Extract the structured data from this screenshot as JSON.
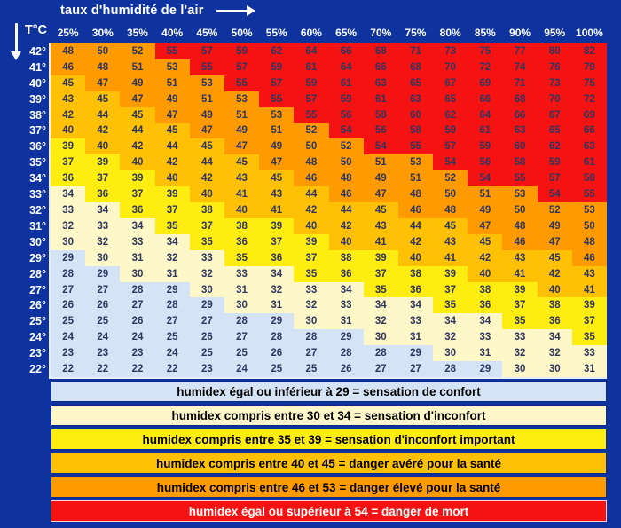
{
  "header": {
    "title": "taux d'humidité de l'air",
    "temp_axis_label": "T°C"
  },
  "colors": {
    "background": "#0E339E",
    "cell_text": "#2E3660",
    "header_text": "#FFFFFF",
    "table_edge": "#E9EEF8"
  },
  "chart_data": {
    "type": "heatmap",
    "title": "taux d'humidité de l'air",
    "xlabel": "taux d'humidité de l'air",
    "ylabel": "T°C",
    "columns": [
      "25%",
      "30%",
      "35%",
      "40%",
      "45%",
      "50%",
      "55%",
      "60%",
      "65%",
      "70%",
      "75%",
      "80%",
      "85%",
      "90%",
      "95%",
      "100%"
    ],
    "rows": [
      {
        "temp": "42°",
        "values": [
          48,
          50,
          52,
          55,
          57,
          59,
          62,
          64,
          66,
          68,
          71,
          73,
          75,
          77,
          80,
          82
        ]
      },
      {
        "temp": "41°",
        "values": [
          46,
          48,
          51,
          53,
          55,
          57,
          59,
          61,
          64,
          66,
          68,
          70,
          72,
          74,
          76,
          79
        ]
      },
      {
        "temp": "40°",
        "values": [
          45,
          47,
          49,
          51,
          53,
          55,
          57,
          59,
          61,
          63,
          65,
          67,
          69,
          71,
          73,
          75
        ]
      },
      {
        "temp": "39°",
        "values": [
          43,
          45,
          47,
          49,
          51,
          53,
          55,
          57,
          59,
          61,
          63,
          65,
          66,
          68,
          70,
          72
        ]
      },
      {
        "temp": "38°",
        "values": [
          42,
          44,
          45,
          47,
          49,
          51,
          53,
          55,
          56,
          58,
          60,
          62,
          64,
          66,
          67,
          69
        ]
      },
      {
        "temp": "37°",
        "values": [
          40,
          42,
          44,
          45,
          47,
          49,
          51,
          52,
          54,
          56,
          58,
          59,
          61,
          63,
          65,
          66
        ]
      },
      {
        "temp": "36°",
        "values": [
          39,
          40,
          42,
          44,
          45,
          47,
          49,
          50,
          52,
          54,
          55,
          57,
          59,
          60,
          62,
          63
        ]
      },
      {
        "temp": "35°",
        "values": [
          37,
          39,
          40,
          42,
          44,
          45,
          47,
          48,
          50,
          51,
          53,
          54,
          56,
          58,
          59,
          61
        ]
      },
      {
        "temp": "34°",
        "values": [
          36,
          37,
          39,
          40,
          42,
          43,
          45,
          46,
          48,
          49,
          51,
          52,
          54,
          55,
          57,
          58
        ]
      },
      {
        "temp": "33°",
        "values": [
          34,
          36,
          37,
          39,
          40,
          41,
          43,
          44,
          46,
          47,
          48,
          50,
          51,
          53,
          54,
          55
        ]
      },
      {
        "temp": "32°",
        "values": [
          33,
          34,
          36,
          37,
          38,
          40,
          41,
          42,
          44,
          45,
          46,
          48,
          49,
          50,
          52,
          53
        ]
      },
      {
        "temp": "31°",
        "values": [
          32,
          33,
          34,
          35,
          37,
          38,
          39,
          40,
          42,
          43,
          44,
          45,
          47,
          48,
          49,
          50
        ]
      },
      {
        "temp": "30°",
        "values": [
          30,
          32,
          33,
          34,
          35,
          36,
          37,
          39,
          40,
          41,
          42,
          43,
          45,
          46,
          47,
          48
        ]
      },
      {
        "temp": "29°",
        "values": [
          29,
          30,
          31,
          32,
          33,
          35,
          36,
          37,
          38,
          39,
          40,
          41,
          42,
          43,
          45,
          46
        ]
      },
      {
        "temp": "28°",
        "values": [
          28,
          29,
          30,
          31,
          32,
          33,
          34,
          35,
          36,
          37,
          38,
          39,
          40,
          41,
          42,
          43
        ]
      },
      {
        "temp": "27°",
        "values": [
          27,
          27,
          28,
          29,
          30,
          31,
          32,
          33,
          34,
          35,
          36,
          37,
          38,
          39,
          40,
          41
        ]
      },
      {
        "temp": "26°",
        "values": [
          26,
          26,
          27,
          28,
          29,
          30,
          31,
          32,
          33,
          34,
          34,
          35,
          36,
          37,
          38,
          39
        ]
      },
      {
        "temp": "25°",
        "values": [
          25,
          25,
          26,
          27,
          27,
          28,
          29,
          30,
          31,
          32,
          33,
          34,
          34,
          35,
          36,
          37
        ]
      },
      {
        "temp": "24°",
        "values": [
          24,
          24,
          24,
          25,
          26,
          27,
          28,
          28,
          29,
          30,
          31,
          32,
          33,
          33,
          34,
          35
        ]
      },
      {
        "temp": "23°",
        "values": [
          23,
          23,
          23,
          24,
          25,
          25,
          26,
          27,
          28,
          28,
          29,
          30,
          31,
          32,
          32,
          33
        ]
      },
      {
        "temp": "22°",
        "values": [
          22,
          22,
          22,
          22,
          23,
          24,
          25,
          25,
          26,
          27,
          27,
          28,
          29,
          30,
          30,
          31
        ]
      }
    ],
    "thresholds": [
      {
        "max": 29,
        "color": "#D5E3F6",
        "meaning": "sensation de confort"
      },
      {
        "max": 34,
        "color": "#FEF7C8",
        "meaning": "sensation d'inconfort"
      },
      {
        "max": 39,
        "color": "#FFEC11",
        "meaning": "sensation d'inconfort important"
      },
      {
        "max": 45,
        "color": "#FFC005",
        "meaning": "danger avéré pour la santé"
      },
      {
        "max": 53,
        "color": "#FF9B01",
        "meaning": "danger élevé pour la santé"
      },
      {
        "max": 999,
        "color": "#F41212",
        "meaning": "danger de mort"
      }
    ]
  },
  "legend": {
    "items": [
      {
        "label": "humidex égal ou inférieur à 29  =  sensation de confort",
        "color": "#D5E3F6",
        "text_color": "#000000",
        "border_color": "#0B2B8C"
      },
      {
        "label": "humidex compris entre 30 et 34 = sensation d'inconfort",
        "color": "#FEF7C8",
        "text_color": "#000000",
        "border_color": "#0B2B8C"
      },
      {
        "label": "humidex compris entre 35 et 39 = sensation d'inconfort important",
        "color": "#FFEC11",
        "text_color": "#000000",
        "border_color": "#0B2B8C"
      },
      {
        "label": "humidex compris entre 40 et 45 = danger avéré pour la santé",
        "color": "#FFC005",
        "text_color": "#000000",
        "border_color": "#0B2B8C"
      },
      {
        "label": "humidex compris entre 46 et 53 = danger élevé pour la santé",
        "color": "#FF9B01",
        "text_color": "#000000",
        "border_color": "#0B2B8C"
      },
      {
        "label": "humidex égal ou supérieur à 54 = danger de mort",
        "color": "#F41212",
        "text_color": "#FFFFFF",
        "border_color": "#F3D5D5"
      }
    ]
  }
}
